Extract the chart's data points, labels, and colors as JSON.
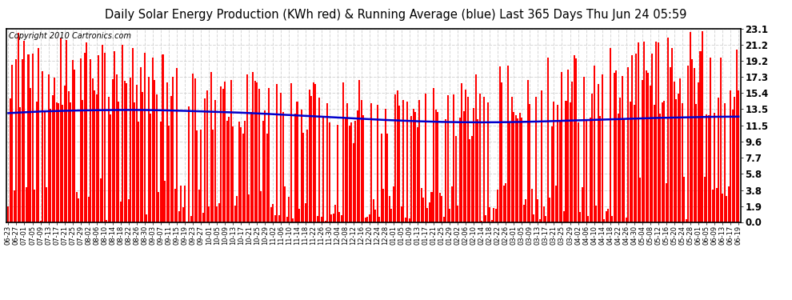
{
  "title": "Daily Solar Energy Production (KWh red) & Running Average (blue) Last 365 Days Thu Jun 24 05:59",
  "copyright": "Copyright 2010 Cartronics.com",
  "yticks": [
    0.0,
    1.9,
    3.8,
    5.8,
    7.7,
    9.6,
    11.5,
    13.5,
    15.4,
    17.3,
    19.2,
    21.2,
    23.1
  ],
  "ymax": 23.1,
  "ymin": 0.0,
  "bar_color": "#ff0000",
  "avg_color": "#0000cc",
  "bg_color": "#ffffff",
  "plot_bg_color": "#ffffff",
  "grid_color": "#cccccc",
  "title_fontsize": 10.5,
  "copyright_fontsize": 7,
  "tick_fontsize": 8.5,
  "xtick_fontsize": 6.0,
  "avg_linewidth": 1.8,
  "x_dates": [
    "06-23",
    "06-27",
    "07-01",
    "07-05",
    "07-09",
    "07-13",
    "07-17",
    "07-21",
    "07-25",
    "07-29",
    "08-02",
    "08-06",
    "08-10",
    "08-14",
    "08-18",
    "08-22",
    "08-26",
    "08-30",
    "09-03",
    "09-07",
    "09-11",
    "09-15",
    "09-19",
    "09-23",
    "09-27",
    "10-01",
    "10-05",
    "10-09",
    "10-13",
    "10-17",
    "10-21",
    "10-25",
    "10-29",
    "11-02",
    "11-06",
    "11-10",
    "11-14",
    "11-18",
    "11-22",
    "11-26",
    "11-30",
    "12-04",
    "12-08",
    "12-12",
    "12-16",
    "12-20",
    "12-24",
    "12-28",
    "01-01",
    "01-05",
    "01-09",
    "01-13",
    "01-17",
    "01-21",
    "01-25",
    "01-29",
    "02-02",
    "02-06",
    "02-10",
    "02-14",
    "02-18",
    "02-22",
    "02-26",
    "03-01",
    "03-05",
    "03-09",
    "03-13",
    "03-17",
    "03-21",
    "03-25",
    "03-29",
    "04-02",
    "04-06",
    "04-10",
    "04-14",
    "04-18",
    "04-22",
    "04-26",
    "04-30",
    "05-04",
    "05-08",
    "05-12",
    "05-16",
    "05-20",
    "05-24",
    "05-28",
    "06-01",
    "06-05",
    "06-09",
    "06-13",
    "06-17",
    "06-19"
  ],
  "avg_curve": [
    13.0,
    13.05,
    13.1,
    13.15,
    13.2,
    13.22,
    13.25,
    13.28,
    13.3,
    13.32,
    13.33,
    13.35,
    13.36,
    13.37,
    13.38,
    13.38,
    13.38,
    13.37,
    13.36,
    13.34,
    13.32,
    13.3,
    13.27,
    13.24,
    13.21,
    13.18,
    13.15,
    13.12,
    13.08,
    13.05,
    13.01,
    12.97,
    12.92,
    12.87,
    12.82,
    12.77,
    12.72,
    12.67,
    12.62,
    12.57,
    12.52,
    12.47,
    12.43,
    12.38,
    12.33,
    12.28,
    12.23,
    12.18,
    12.14,
    12.1,
    12.06,
    12.03,
    12.0,
    11.97,
    11.95,
    11.93,
    11.92,
    11.91,
    11.9,
    11.9,
    11.9,
    11.91,
    11.92,
    11.93,
    11.95,
    11.97,
    12.0,
    12.02,
    12.05,
    12.08,
    12.11,
    12.14,
    12.17,
    12.2,
    12.23,
    12.26,
    12.29,
    12.32,
    12.35,
    12.38,
    12.41,
    12.43,
    12.45,
    12.47,
    12.49,
    12.51,
    12.53,
    12.55,
    12.56,
    12.57,
    12.58,
    12.58
  ]
}
